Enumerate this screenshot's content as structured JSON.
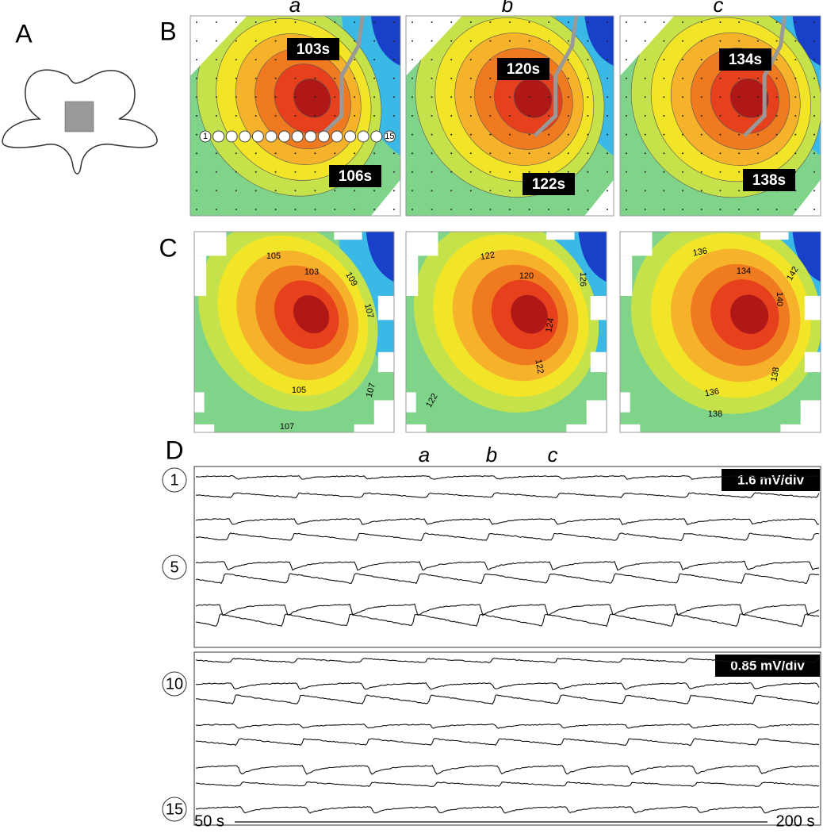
{
  "panel_labels": [
    "A",
    "B",
    "C",
    "D"
  ],
  "columns": [
    "a",
    "b",
    "c"
  ],
  "electrodes": {
    "first": "1",
    "last": "15"
  },
  "activation_maps": [
    {
      "labels": [
        "103s",
        "106s"
      ]
    },
    {
      "labels": [
        "120s",
        "122s"
      ]
    },
    {
      "labels": [
        "134s",
        "138s"
      ]
    }
  ],
  "isochrone_maps": [
    {
      "contours": [
        "105",
        "103",
        "109",
        "107",
        "105",
        "107",
        "107"
      ]
    },
    {
      "contours": [
        "122",
        "120",
        "126",
        "124",
        "122",
        "122"
      ]
    },
    {
      "contours": [
        "136",
        "134",
        "142",
        "140",
        "138",
        "136",
        "138"
      ]
    }
  ],
  "traces": {
    "markers": [
      "a",
      "b",
      "c"
    ],
    "channels": [
      "1",
      "5",
      "10",
      "15"
    ],
    "scale_top": "1.6 mV/div",
    "scale_bottom": "0.85 mV/div",
    "time_start": "50 s",
    "time_end": "200 s"
  }
}
